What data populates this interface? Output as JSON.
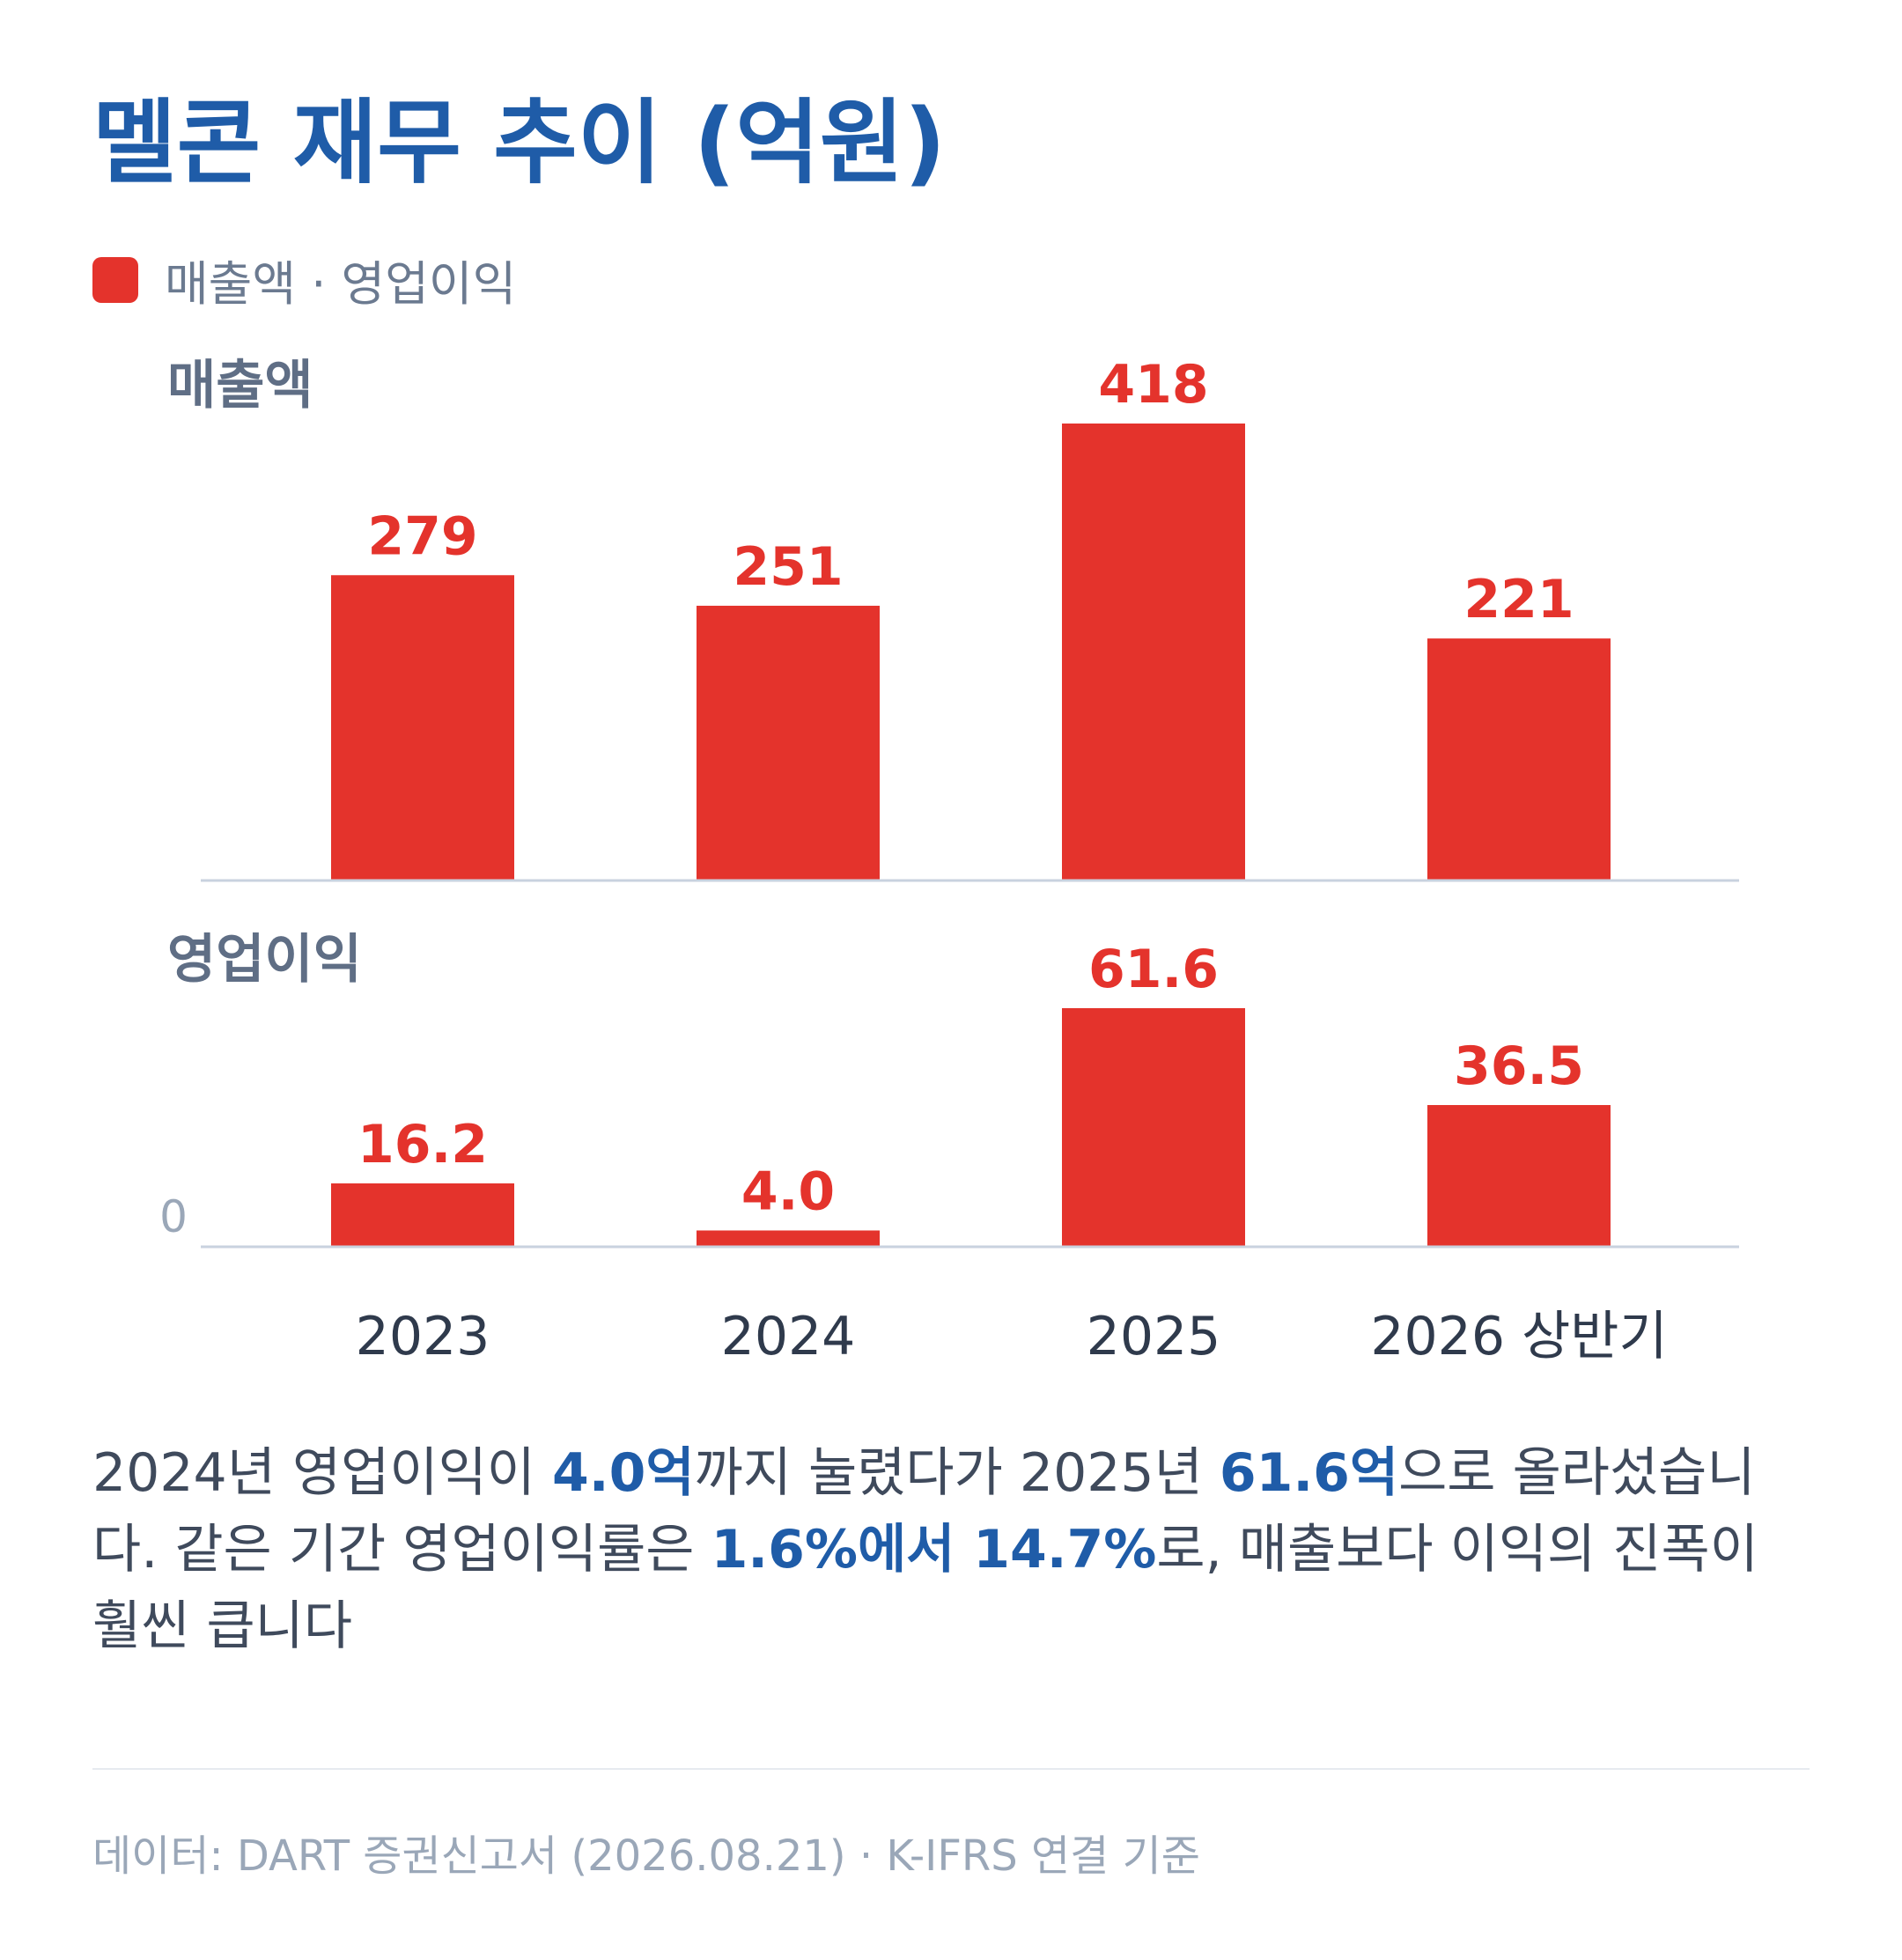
{
  "title": "멜콘 재무 추이 (억원)",
  "legend": {
    "label": "매출액 · 영업이익",
    "color": "#e4332c"
  },
  "colors": {
    "bar": "#e4332c",
    "title": "#1f5ca8",
    "axis": "#c9d2df",
    "panel_label": "#5f6e85"
  },
  "chart_data": [
    {
      "type": "bar",
      "title": "매출액",
      "categories": [
        "2023",
        "2024",
        "2025",
        "2026 상반기"
      ],
      "values": [
        279,
        251,
        418,
        221
      ],
      "value_labels": [
        "279",
        "251",
        "418",
        "221"
      ],
      "xlabel": "",
      "ylabel": "",
      "ylim": [
        0,
        418
      ],
      "grid": false
    },
    {
      "type": "bar",
      "title": "영업이익",
      "categories": [
        "2023",
        "2024",
        "2025",
        "2026 상반기"
      ],
      "values": [
        16.2,
        4.0,
        61.6,
        36.5
      ],
      "value_labels": [
        "16.2",
        "4.0",
        "61.6",
        "36.5"
      ],
      "xlabel": "",
      "ylabel": "",
      "ylim": [
        0,
        61.6
      ],
      "zero_label": "0",
      "grid": false
    }
  ],
  "note": {
    "p1": "2024년 영업이익이 ",
    "h1": "4.0억",
    "p2": "까지 눌렸다가 2025년 ",
    "h2": "61.6억",
    "p3": "으로 올라섰습니다. 같은 기간 영업이익률은 ",
    "h3": "1.6%에서 14.7%",
    "p4": "로, 매출보다 이익의 진폭이 훨씬 큽니다"
  },
  "footer": "데이터: DART 증권신고서 (2026.08.21) · K-IFRS 연결 기준"
}
